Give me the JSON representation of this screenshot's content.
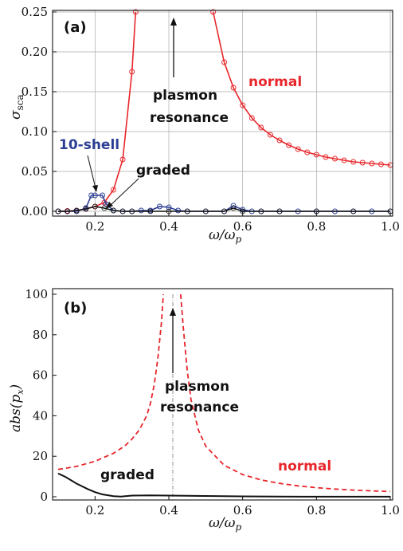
{
  "chart_data": [
    {
      "type": "line",
      "panel_label": "(a)",
      "xlabel": "ω/ωp",
      "ylabel": "σsca",
      "xlim": [
        0.1,
        1.0
      ],
      "ylim": [
        0,
        0.25
      ],
      "xticks": [
        "0.2",
        "0.4",
        "0.6",
        "0.8",
        "1.0"
      ],
      "yticks": [
        "0.00",
        "0.05",
        "0.10",
        "0.15",
        "0.20",
        "0.25"
      ],
      "grid": true,
      "series": [
        {
          "name": "normal",
          "color": "#e8262b",
          "segments": [
            [
              [
                0.1,
                0.0
              ],
              [
                0.125,
                0.0005
              ],
              [
                0.15,
                0.001
              ],
              [
                0.175,
                0.003
              ],
              [
                0.2,
                0.006
              ],
              [
                0.225,
                0.011
              ],
              [
                0.25,
                0.027
              ],
              [
                0.275,
                0.065
              ],
              [
                0.3,
                0.175
              ],
              [
                0.31,
                0.25
              ]
            ],
            [
              [
                0.52,
                0.25
              ],
              [
                0.55,
                0.187
              ],
              [
                0.575,
                0.155
              ],
              [
                0.6,
                0.133
              ],
              [
                0.625,
                0.117
              ],
              [
                0.65,
                0.105
              ],
              [
                0.675,
                0.096
              ],
              [
                0.7,
                0.089
              ],
              [
                0.725,
                0.083
              ],
              [
                0.75,
                0.078
              ],
              [
                0.775,
                0.074
              ],
              [
                0.8,
                0.071
              ],
              [
                0.825,
                0.068
              ],
              [
                0.85,
                0.066
              ],
              [
                0.875,
                0.064
              ],
              [
                0.9,
                0.062
              ],
              [
                0.925,
                0.061
              ],
              [
                0.95,
                0.06
              ],
              [
                0.975,
                0.059
              ],
              [
                1.0,
                0.058
              ]
            ]
          ]
        },
        {
          "name": "10-shell",
          "color": "#2d3f95",
          "points": [
            [
              0.1,
              0.0
            ],
            [
              0.125,
              0.0
            ],
            [
              0.15,
              0.0
            ],
            [
              0.175,
              0.004
            ],
            [
              0.19,
              0.02
            ],
            [
              0.2,
              0.02
            ],
            [
              0.22,
              0.02
            ],
            [
              0.23,
              0.009
            ],
            [
              0.25,
              0.001
            ],
            [
              0.275,
              0.0
            ],
            [
              0.3,
              0.0
            ],
            [
              0.325,
              0.001
            ],
            [
              0.35,
              0.001
            ],
            [
              0.375,
              0.006
            ],
            [
              0.4,
              0.005
            ],
            [
              0.425,
              0.001
            ],
            [
              0.45,
              0.0
            ],
            [
              0.5,
              0.0
            ],
            [
              0.55,
              0.0
            ],
            [
              0.575,
              0.007
            ],
            [
              0.6,
              0.002
            ],
            [
              0.625,
              0.0
            ],
            [
              0.65,
              0.0
            ],
            [
              0.7,
              0.0
            ],
            [
              0.75,
              0.0
            ],
            [
              0.8,
              0.0
            ],
            [
              0.85,
              0.0
            ],
            [
              0.9,
              0.0
            ],
            [
              0.95,
              0.0
            ],
            [
              1.0,
              0.0
            ]
          ]
        },
        {
          "name": "graded",
          "color": "#111111",
          "points": [
            [
              0.1,
              0.0
            ],
            [
              0.125,
              0.0
            ],
            [
              0.15,
              0.001
            ],
            [
              0.175,
              0.003
            ],
            [
              0.2,
              0.006
            ],
            [
              0.225,
              0.004
            ],
            [
              0.25,
              0.001
            ],
            [
              0.275,
              0.0
            ],
            [
              0.3,
              0.0
            ],
            [
              0.35,
              0.0
            ],
            [
              0.4,
              0.0
            ],
            [
              0.45,
              0.0
            ],
            [
              0.5,
              0.0
            ],
            [
              0.55,
              0.0
            ],
            [
              0.575,
              0.004
            ],
            [
              0.6,
              0.0
            ],
            [
              0.65,
              0.0
            ],
            [
              0.7,
              0.0
            ],
            [
              0.8,
              0.0
            ],
            [
              0.9,
              0.0
            ],
            [
              1.0,
              0.0
            ]
          ]
        }
      ],
      "annotations": [
        "plasmon",
        "resonance",
        "normal",
        "10-shell",
        "graded"
      ]
    },
    {
      "type": "line",
      "panel_label": "(b)",
      "xlabel": "ω/ωp",
      "ylabel": "abs(px)",
      "xlim": [
        0.1,
        1.0
      ],
      "ylim": [
        0,
        100
      ],
      "xticks": [
        "0.2",
        "0.4",
        "0.6",
        "0.8",
        "1.0"
      ],
      "yticks": [
        "0",
        "20",
        "40",
        "60",
        "80",
        "100"
      ],
      "grid": false,
      "vline_x": 0.41,
      "series": [
        {
          "name": "normal",
          "color": "#e8262b",
          "dashed": true,
          "segments": [
            [
              [
                0.1,
                13.5
              ],
              [
                0.15,
                15
              ],
              [
                0.2,
                17.5
              ],
              [
                0.25,
                21.5
              ],
              [
                0.28,
                25
              ],
              [
                0.3,
                28.5
              ],
              [
                0.32,
                33
              ],
              [
                0.34,
                40
              ],
              [
                0.35,
                46
              ],
              [
                0.36,
                55
              ],
              [
                0.37,
                68
              ],
              [
                0.38,
                86
              ],
              [
                0.385,
                100
              ]
            ],
            [
              [
                0.432,
                100
              ],
              [
                0.44,
                82
              ],
              [
                0.45,
                62
              ],
              [
                0.46,
                48
              ],
              [
                0.48,
                33
              ],
              [
                0.5,
                25
              ],
              [
                0.55,
                15.5
              ],
              [
                0.6,
                11
              ],
              [
                0.65,
                8.3
              ],
              [
                0.7,
                6.6
              ],
              [
                0.75,
                5.4
              ],
              [
                0.8,
                4.5
              ],
              [
                0.85,
                3.8
              ],
              [
                0.9,
                3.3
              ],
              [
                0.95,
                2.9
              ],
              [
                1.0,
                2.6
              ]
            ]
          ]
        },
        {
          "name": "graded",
          "color": "#111111",
          "points": [
            [
              0.1,
              11.5
            ],
            [
              0.12,
              9.8
            ],
            [
              0.15,
              6.5
            ],
            [
              0.18,
              3.8
            ],
            [
              0.2,
              2.3
            ],
            [
              0.22,
              1.2
            ],
            [
              0.25,
              0.3
            ],
            [
              0.27,
              0.1
            ],
            [
              0.3,
              0.6
            ],
            [
              0.35,
              0.7
            ],
            [
              0.4,
              0.6
            ],
            [
              0.45,
              0.5
            ],
            [
              0.5,
              0.4
            ],
            [
              0.55,
              0.3
            ],
            [
              0.6,
              0.2
            ],
            [
              0.7,
              0.1
            ],
            [
              0.8,
              0.05
            ],
            [
              0.9,
              0.05
            ],
            [
              1.0,
              0.05
            ]
          ]
        }
      ],
      "annotations": [
        "plasmon",
        "resonance",
        "normal",
        "graded"
      ]
    }
  ]
}
